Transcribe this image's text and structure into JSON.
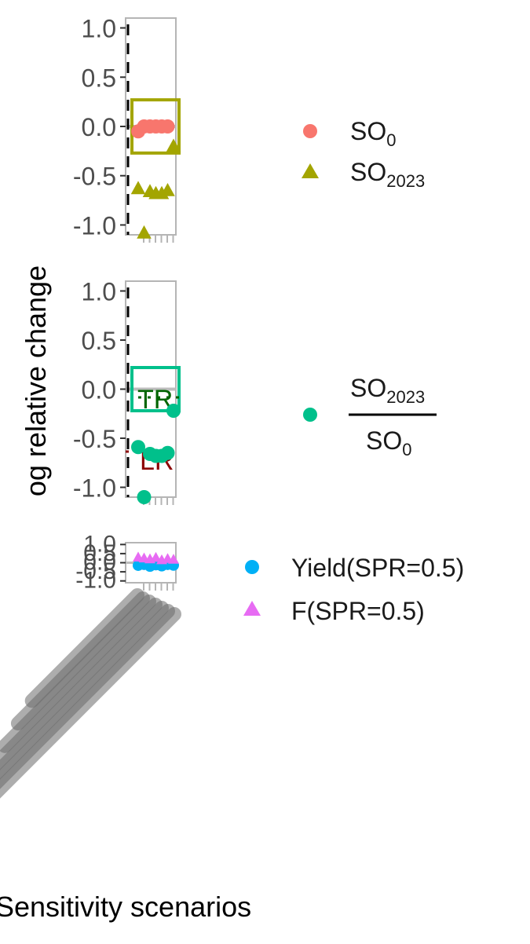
{
  "figure": {
    "ylabel": "og relative change",
    "xlabel": "Sensitivity scenarios"
  },
  "colors": {
    "so0": "#F8766D",
    "so2023": "#A3A500",
    "ratio": "#00C08B",
    "yield": "#00B0F6",
    "f": "#E76BF3",
    "tr_text": "#006400",
    "lr_text": "#8B0000",
    "frame": "#b5b5b5",
    "zero_line": "#bdbdbd"
  },
  "legend": {
    "top": [
      {
        "symbol": "circle",
        "base": "SO",
        "sub": "0"
      },
      {
        "symbol": "triangle",
        "base": "SO",
        "sub": "2023"
      }
    ],
    "middle": {
      "symbol": "circle",
      "num_base": "SO",
      "num_sub": "2023",
      "den_base": "SO",
      "den_sub": "0"
    },
    "bottom": [
      {
        "symbol": "circle",
        "label": "Yield(SPR=0.5)"
      },
      {
        "symbol": "triangle",
        "label": "F(SPR=0.5)"
      }
    ]
  },
  "annotations": {
    "tr": "TR",
    "lr": "LR"
  },
  "chart_data": [
    {
      "type": "scatter",
      "panel": "top",
      "ylim": [
        -1.1,
        1.1
      ],
      "yticks": [
        "1.0",
        "0.5",
        "0.0",
        "-0.5",
        "-1.0"
      ],
      "ytick_values": [
        1.0,
        0.5,
        0.0,
        -0.5,
        -1.0
      ],
      "series": [
        {
          "name": "SO0",
          "symbol": "circle",
          "x": [
            1,
            2,
            3,
            4,
            5,
            6
          ],
          "y": [
            -0.05,
            0.0,
            0.0,
            0.0,
            0.0,
            0.0
          ]
        },
        {
          "name": "SO2023",
          "symbol": "triangle",
          "x": [
            1,
            2,
            3,
            4,
            5,
            6,
            7
          ],
          "y": [
            -0.63,
            -1.08,
            -0.66,
            -0.68,
            -0.68,
            -0.65,
            -0.2
          ]
        }
      ],
      "box": {
        "ymin": -0.27,
        "ymax": 0.27
      }
    },
    {
      "type": "scatter",
      "panel": "middle",
      "ylim": [
        -1.1,
        1.1
      ],
      "yticks": [
        "1.0",
        "0.5",
        "0.0",
        "-0.5",
        "-1.0"
      ],
      "ytick_values": [
        1.0,
        0.5,
        0.0,
        -0.5,
        -1.0
      ],
      "series": [
        {
          "name": "SO2023/SO0",
          "symbol": "circle",
          "x": [
            1,
            2,
            3,
            4,
            5,
            6,
            7
          ],
          "y": [
            -0.59,
            -1.1,
            -0.66,
            -0.68,
            -0.68,
            -0.65,
            -0.22
          ]
        }
      ],
      "box": {
        "ymin": -0.22,
        "ymax": 0.22
      }
    },
    {
      "type": "scatter",
      "panel": "bottom",
      "ylim": [
        -1.1,
        1.1
      ],
      "yticks": [
        "1.0",
        "0.5",
        "0.0",
        "-0.5",
        "-1.0"
      ],
      "ytick_values": [
        1.0,
        0.5,
        0.0,
        -0.5,
        -1.0
      ],
      "series": [
        {
          "name": "Yield(SPR=0.5)",
          "symbol": "circle",
          "x": [
            1,
            2,
            3,
            4,
            5,
            6,
            7
          ],
          "y": [
            -0.15,
            -0.1,
            -0.2,
            -0.12,
            -0.18,
            -0.1,
            -0.14
          ]
        },
        {
          "name": "F(SPR=0.5)",
          "symbol": "triangle",
          "x": [
            1,
            2,
            3,
            4,
            5,
            6,
            7
          ],
          "y": [
            0.3,
            0.25,
            0.2,
            0.28,
            0.15,
            0.22,
            0.18
          ]
        }
      ]
    }
  ]
}
